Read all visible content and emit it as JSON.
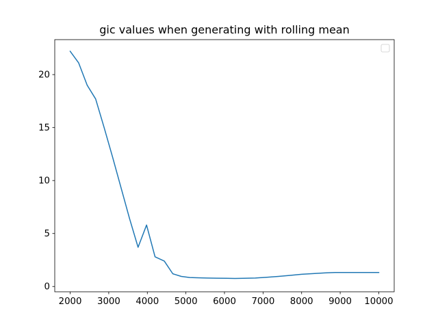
{
  "chart_data": {
    "type": "line",
    "title": "gic values when generating with rolling mean",
    "xlabel": "",
    "ylabel": "",
    "xlim": [
      1600,
      10400
    ],
    "ylim": [
      -0.5,
      23.3
    ],
    "xticks": [
      2000,
      3000,
      4000,
      5000,
      6000,
      7000,
      8000,
      9000,
      10000
    ],
    "yticks": [
      0,
      5,
      10,
      15,
      20
    ],
    "grid": false,
    "legend": "top-right",
    "colors": {
      "line": "#1f77b4",
      "axes": "#000000",
      "legend_border": "#cccccc"
    },
    "series": [
      {
        "x": [
          2000,
          2220,
          2440,
          2660,
          2880,
          3100,
          3320,
          3540,
          3760,
          3980,
          4200,
          4440,
          4660,
          4880,
          5100,
          5300,
          5550,
          5800,
          6050,
          6270,
          6500,
          6800,
          7100,
          7400,
          7700,
          8000,
          8300,
          8600,
          8870,
          9200,
          9500,
          9800,
          10000
        ],
        "y": [
          22.2,
          21.1,
          19.0,
          17.7,
          15.0,
          12.2,
          9.3,
          6.4,
          3.7,
          5.8,
          2.8,
          2.4,
          1.2,
          0.95,
          0.85,
          0.82,
          0.8,
          0.78,
          0.77,
          0.76,
          0.77,
          0.8,
          0.87,
          0.95,
          1.05,
          1.15,
          1.22,
          1.28,
          1.32,
          1.32,
          1.32,
          1.32,
          1.32
        ]
      }
    ]
  }
}
